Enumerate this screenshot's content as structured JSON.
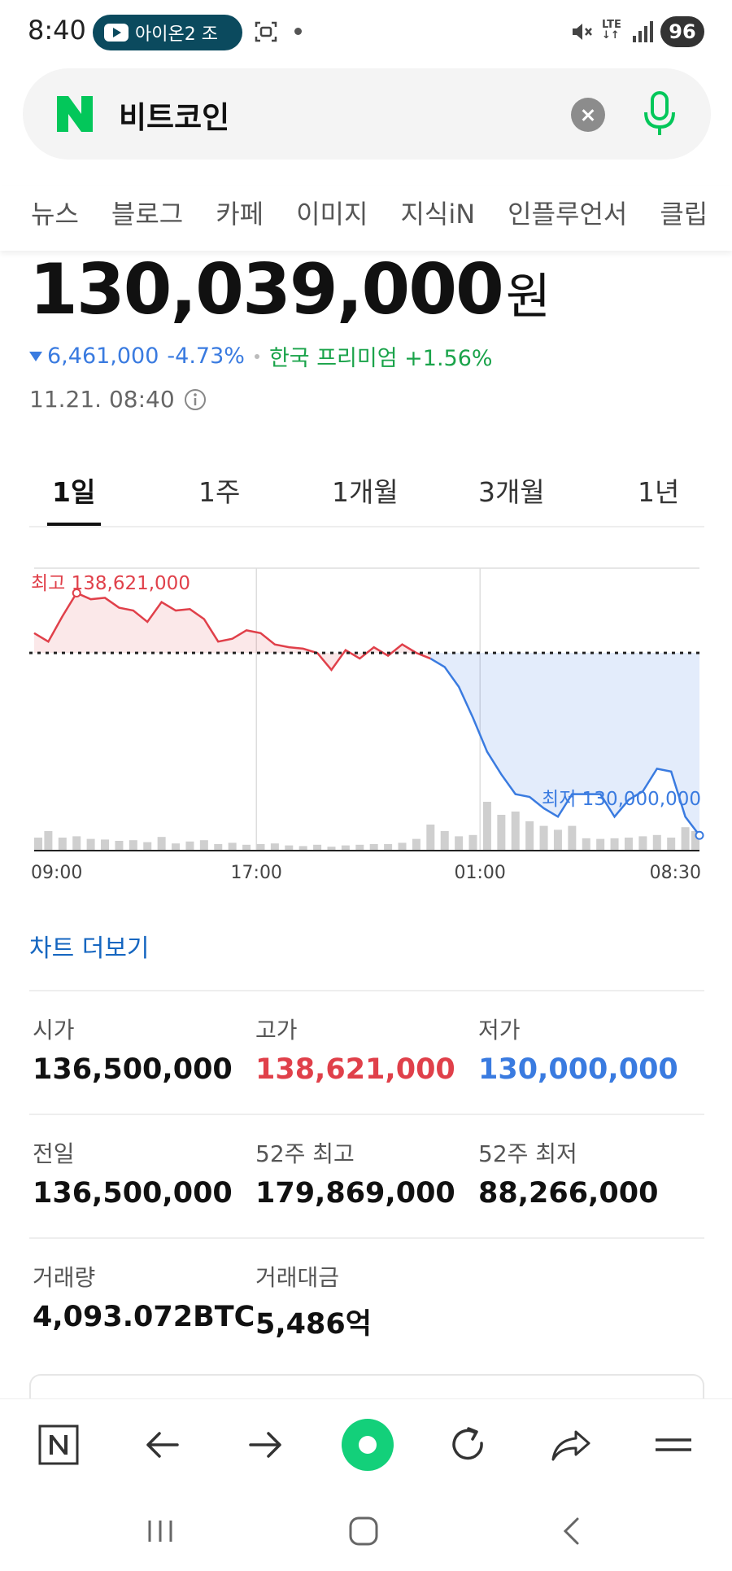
{
  "status_bar": {
    "time": "8:40",
    "media_pill_text": "아이온2 조",
    "lte_label": "LTE",
    "battery": "96"
  },
  "search": {
    "query": "비트코인",
    "brand_color": "#03C75A"
  },
  "category_tabs": [
    "뉴스",
    "블로그",
    "카페",
    "이미지",
    "지식iN",
    "인플루언서",
    "클립"
  ],
  "price": {
    "value": "130,039,000",
    "unit": "원",
    "change": "6,461,000",
    "change_pct": "-4.73%",
    "premium": "한국 프리미엄 +1.56%",
    "datetime": "11.21. 08:40"
  },
  "period_tabs": [
    "1일",
    "1주",
    "1개월",
    "3개월",
    "1년"
  ],
  "chart_data": {
    "type": "line",
    "x_ticks": [
      "09:00",
      "17:00",
      "01:00",
      "08:30"
    ],
    "high_label": "최고 138,621,000",
    "low_label": "최저 130,000,000",
    "reference_label": "전일 136,500,000",
    "reference_value": 136500000,
    "ylim": [
      129500000,
      139500000
    ],
    "x": [
      0,
      1,
      2,
      3,
      4,
      5,
      6,
      7,
      8,
      9,
      10,
      11,
      12,
      13,
      14,
      15,
      16,
      17,
      18,
      19,
      20,
      21,
      22,
      23,
      24,
      25,
      26,
      27,
      28,
      29,
      30,
      31,
      32,
      33,
      34,
      35,
      36,
      37,
      38,
      39,
      40,
      41,
      42,
      43,
      44,
      45,
      46,
      47
    ],
    "values": [
      137200000,
      136900000,
      137800000,
      138621000,
      138400000,
      138450000,
      138100000,
      138000000,
      137600000,
      138300000,
      138000000,
      138050000,
      137700000,
      136900000,
      137000000,
      137300000,
      137200000,
      136800000,
      136700000,
      136650000,
      136500000,
      135900000,
      136600000,
      136300000,
      136700000,
      136400000,
      136800000,
      136500000,
      136300000,
      136000000,
      135300000,
      134200000,
      133000000,
      132200000,
      131500000,
      131400000,
      131000000,
      130700000,
      131500000,
      131500000,
      131500000,
      130700000,
      131300000,
      131600000,
      132400000,
      132300000,
      130700000,
      130039000
    ],
    "volumes": [
      2,
      3,
      2,
      2.2,
      1.8,
      1.7,
      1.5,
      1.6,
      1.3,
      2.1,
      1.1,
      1.4,
      1.6,
      1.0,
      1.2,
      0.9,
      1.0,
      1.1,
      0.8,
      0.7,
      0.9,
      0.6,
      0.8,
      0.9,
      1.0,
      1.0,
      1.2,
      1.8,
      4,
      3,
      2.2,
      2.4,
      7.5,
      5.5,
      6,
      4.5,
      3.8,
      3.2,
      3.8,
      1.9,
      1.8,
      1.9,
      2.0,
      2.2,
      2.4,
      2.0,
      3.6,
      3.0
    ],
    "colors": {
      "up": "#e0404a",
      "down": "#3a7be0",
      "grid": "#dddddd",
      "volume": "#cfcfcf"
    }
  },
  "more_chart": "차트 더보기",
  "stats": [
    [
      {
        "label": "시가",
        "value": "136,500,000"
      },
      {
        "label": "고가",
        "value": "138,621,000"
      },
      {
        "label": "저가",
        "value": "130,000,000"
      }
    ],
    [
      {
        "label": "전일",
        "value": "136,500,000"
      },
      {
        "label": "52주 최고",
        "value": "179,869,000"
      },
      {
        "label": "52주 최저",
        "value": "88,266,000"
      }
    ],
    [
      {
        "label": "거래량",
        "value": "4,093.072BTC"
      },
      {
        "label": "거래대금",
        "value": "5,486억"
      }
    ]
  ],
  "toolbar_icons": [
    "naver-home-icon",
    "back-icon",
    "forward-icon",
    "green-dot-icon",
    "refresh-icon",
    "share-icon",
    "menu-icon"
  ]
}
